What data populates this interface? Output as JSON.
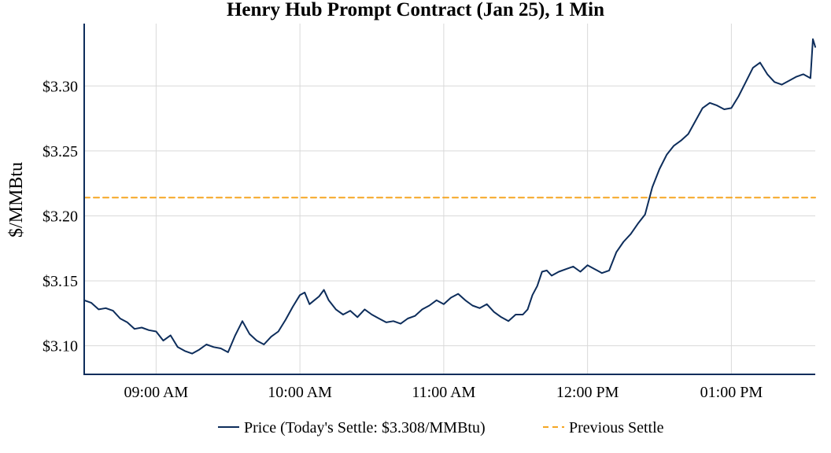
{
  "chart_data": {
    "type": "line",
    "title": "Henry Hub Prompt Contract (Jan 25), 1 Min",
    "xlabel": "",
    "ylabel": "$/MMBtu",
    "x_range": [
      "08:30",
      "13:35"
    ],
    "ylim": [
      3.078,
      3.348
    ],
    "x_ticks": [
      {
        "t": "09:00",
        "label": "09:00 AM"
      },
      {
        "t": "10:00",
        "label": "10:00 AM"
      },
      {
        "t": "11:00",
        "label": "11:00 AM"
      },
      {
        "t": "12:00",
        "label": "12:00 PM"
      },
      {
        "t": "13:00",
        "label": "01:00 PM"
      }
    ],
    "y_ticks": [
      {
        "v": 3.1,
        "label": "$3.10"
      },
      {
        "v": 3.15,
        "label": "$3.15"
      },
      {
        "v": 3.2,
        "label": "$3.20"
      },
      {
        "v": 3.25,
        "label": "$3.25"
      },
      {
        "v": 3.3,
        "label": "$3.30"
      }
    ],
    "grid": true,
    "legend_position": "bottom-center",
    "series": [
      {
        "name": "Price (Today's Settle: $3.308/MMBtu)",
        "style": "solid",
        "color": "#0d2d5b",
        "x": [
          "08:30",
          "08:33",
          "08:36",
          "08:39",
          "08:42",
          "08:45",
          "08:48",
          "08:51",
          "08:54",
          "08:57",
          "09:00",
          "09:03",
          "09:06",
          "09:09",
          "09:12",
          "09:15",
          "09:18",
          "09:21",
          "09:24",
          "09:27",
          "09:30",
          "09:33",
          "09:36",
          "09:39",
          "09:42",
          "09:45",
          "09:48",
          "09:51",
          "09:54",
          "09:57",
          "10:00",
          "10:02",
          "10:04",
          "10:06",
          "10:08",
          "10:10",
          "10:12",
          "10:15",
          "10:18",
          "10:21",
          "10:24",
          "10:27",
          "10:30",
          "10:33",
          "10:36",
          "10:39",
          "10:42",
          "10:45",
          "10:48",
          "10:51",
          "10:54",
          "10:57",
          "11:00",
          "11:03",
          "11:06",
          "11:09",
          "11:12",
          "11:15",
          "11:18",
          "11:21",
          "11:24",
          "11:27",
          "11:30",
          "11:33",
          "11:35",
          "11:37",
          "11:39",
          "11:41",
          "11:43",
          "11:45",
          "11:48",
          "11:51",
          "11:54",
          "11:57",
          "12:00",
          "12:03",
          "12:06",
          "12:09",
          "12:12",
          "12:15",
          "12:18",
          "12:21",
          "12:24",
          "12:27",
          "12:30",
          "12:33",
          "12:36",
          "12:39",
          "12:42",
          "12:45",
          "12:48",
          "12:51",
          "12:54",
          "12:57",
          "13:00",
          "13:03",
          "13:06",
          "13:09",
          "13:12",
          "13:15",
          "13:18",
          "13:21",
          "13:24",
          "13:27",
          "13:30",
          "13:33",
          "13:34",
          "13:35"
        ],
        "values": [
          3.135,
          3.133,
          3.128,
          3.129,
          3.127,
          3.121,
          3.118,
          3.113,
          3.114,
          3.112,
          3.111,
          3.104,
          3.108,
          3.099,
          3.096,
          3.094,
          3.097,
          3.101,
          3.099,
          3.098,
          3.095,
          3.108,
          3.119,
          3.109,
          3.104,
          3.101,
          3.107,
          3.111,
          3.12,
          3.13,
          3.139,
          3.141,
          3.132,
          3.135,
          3.138,
          3.143,
          3.135,
          3.128,
          3.124,
          3.127,
          3.122,
          3.128,
          3.124,
          3.121,
          3.118,
          3.119,
          3.117,
          3.121,
          3.123,
          3.128,
          3.131,
          3.135,
          3.132,
          3.137,
          3.14,
          3.135,
          3.131,
          3.129,
          3.132,
          3.126,
          3.122,
          3.119,
          3.124,
          3.124,
          3.128,
          3.139,
          3.146,
          3.157,
          3.158,
          3.154,
          3.157,
          3.159,
          3.161,
          3.157,
          3.162,
          3.159,
          3.156,
          3.158,
          3.172,
          3.18,
          3.186,
          3.194,
          3.201,
          3.222,
          3.236,
          3.247,
          3.254,
          3.258,
          3.263,
          3.273,
          3.283,
          3.287,
          3.285,
          3.282,
          3.283,
          3.292,
          3.303,
          3.314,
          3.318,
          3.309,
          3.303,
          3.301,
          3.304,
          3.307,
          3.309,
          3.306,
          3.336,
          3.33
        ]
      },
      {
        "name": "Previous Settle",
        "style": "dashed",
        "color": "#f5a623",
        "x": [
          "08:30",
          "13:35"
        ],
        "values": [
          3.214,
          3.214
        ]
      }
    ]
  }
}
